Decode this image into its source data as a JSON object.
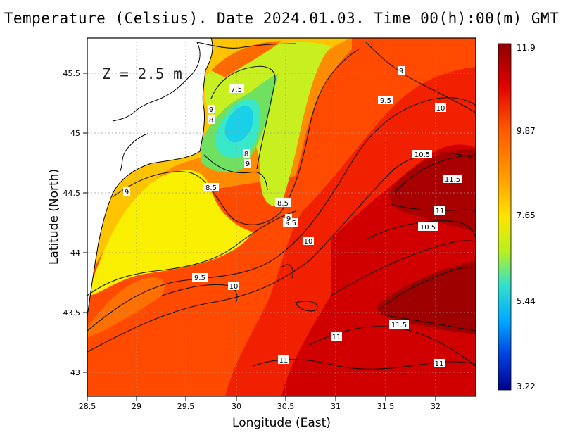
{
  "map": {
    "title": "Temperature (Celsius). Date 2024.01.03. Time 00(h):00(m) GMT",
    "depth_label": "Z = 2.5 m",
    "x_axis_label": "Longitude (East)",
    "y_axis_label": "Latitude (North)",
    "x_ticks": [
      "28.5",
      "29",
      "29.5",
      "30",
      "30.5",
      "31",
      "31.5",
      "32"
    ],
    "y_ticks": [
      "45.5",
      "45",
      "44.5",
      "44",
      "43.5",
      "43"
    ],
    "colorbar": {
      "labels": [
        "11.9",
        "9.87",
        "7.65",
        "5.44",
        "3.22"
      ],
      "colors": [
        "#8b0000",
        "#e00000",
        "#ff5a00",
        "#ff9900",
        "#ffe400",
        "#b8f020",
        "#30e0d0",
        "#00a8ff",
        "#0040e0",
        "#00008b"
      ]
    },
    "contour_labels": [
      {
        "text": "7.5"
      },
      {
        "text": "8"
      },
      {
        "text": "8"
      },
      {
        "text": "9"
      },
      {
        "text": "9"
      },
      {
        "text": "8.5"
      },
      {
        "text": "8.5"
      },
      {
        "text": "9.5"
      },
      {
        "text": "9"
      },
      {
        "text": "9.5"
      },
      {
        "text": "9.5"
      },
      {
        "text": "10"
      },
      {
        "text": "10"
      },
      {
        "text": "10"
      },
      {
        "text": "10.5"
      },
      {
        "text": "11.5"
      },
      {
        "text": "11"
      },
      {
        "text": "10.5"
      },
      {
        "text": "11.5"
      },
      {
        "text": "11"
      },
      {
        "text": "11"
      },
      {
        "text": "11"
      },
      {
        "text": "9"
      },
      {
        "text": "9"
      }
    ]
  }
}
